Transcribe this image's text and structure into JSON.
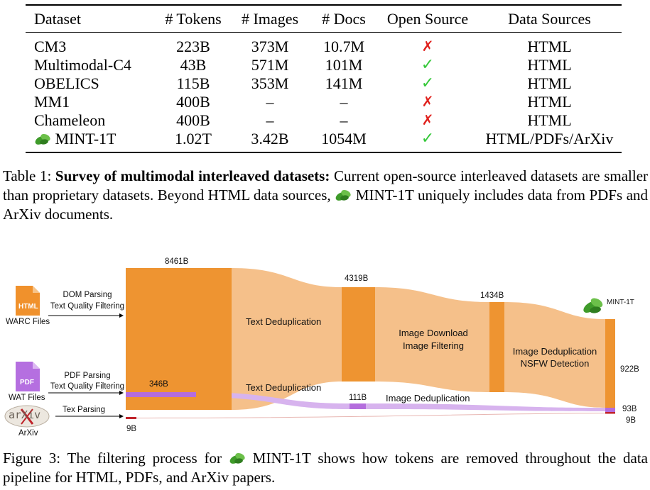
{
  "table": {
    "headers": [
      "Dataset",
      "# Tokens",
      "# Images",
      "# Docs",
      "Open Source",
      "Data Sources"
    ],
    "rows": [
      {
        "dataset": "CM3",
        "tokens": "223B",
        "images": "373M",
        "docs": "10.7M",
        "open": "✗",
        "sources": "HTML"
      },
      {
        "dataset": "Multimodal-C4",
        "tokens": "43B",
        "images": "571M",
        "docs": "101M",
        "open": "✓",
        "sources": "HTML"
      },
      {
        "dataset": "OBELICS",
        "tokens": "115B",
        "images": "353M",
        "docs": "141M",
        "open": "✓",
        "sources": "HTML"
      },
      {
        "dataset": "MM1",
        "tokens": "400B",
        "images": "–",
        "docs": "–",
        "open": "✗",
        "sources": "HTML"
      },
      {
        "dataset": "Chameleon",
        "tokens": "400B",
        "images": "–",
        "docs": "–",
        "open": "✗",
        "sources": "HTML"
      },
      {
        "dataset": "MINT-1T",
        "tokens": "1.02T",
        "images": "3.42B",
        "docs": "1054M",
        "open": "✓",
        "sources": "HTML/PDFs/ArXiv"
      }
    ]
  },
  "caption1": {
    "label": "Table 1:",
    "bold": "Survey of multimodal interleaved datasets:",
    "text_a": "Current open-source interleaved datasets are smaller than proprietary datasets. Beyond HTML data sources,",
    "name": "MINT-1T",
    "text_b": "uniquely includes data from PDFs and ArXiv documents."
  },
  "figure": {
    "sources": {
      "html": {
        "icon_label": "HTML",
        "caption": "WARC Files",
        "step1": "DOM Parsing",
        "step2": "Text Quality Filtering"
      },
      "pdf": {
        "icon_label": "PDF",
        "caption": "WAT Files",
        "step1": "PDF Parsing",
        "step2": "Text Quality Filtering"
      },
      "arxiv": {
        "icon_label": "arXiv",
        "caption": "ArXiv",
        "step1": "Tex Parsing"
      }
    },
    "html_values": [
      "8461B",
      "4319B",
      "1434B",
      "922B"
    ],
    "html_stages": {
      "s1": "Text Deduplication",
      "s2a": "Image Download",
      "s2b": "Image Filtering",
      "s3a": "Image Deduplication",
      "s3b": "NSFW Detection"
    },
    "pdf_values": [
      "346B",
      "111B",
      "93B"
    ],
    "pdf_stages": {
      "s1": "Text Deduplication",
      "s2": "Image Deduplication"
    },
    "arxiv_values": [
      "9B",
      "9B"
    ],
    "output_label": "MINT-1T",
    "colors": {
      "html_dark": "#ee9431",
      "html_light": "#f5c08a",
      "pdf_dark": "#b46ddd",
      "pdf_light": "#d7b3ee",
      "arxiv": "#c0242b",
      "html_icon": "#f0912c",
      "pdf_icon": "#b56fe0"
    }
  },
  "caption2": {
    "label": "Figure 3:",
    "text_a": "The filtering process for",
    "name": "MINT-1T",
    "text_b": "shows how tokens are removed throughout the data pipeline for HTML, PDFs, and ArXiv papers."
  }
}
